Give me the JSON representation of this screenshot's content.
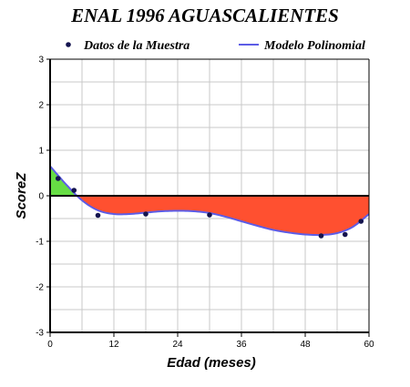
{
  "chart_data": {
    "type": "line",
    "title": "ENAL 1996 AGUASCALIENTES",
    "xlabel": "Edad (meses)",
    "ylabel": "ScoreZ",
    "xlim": [
      0,
      60
    ],
    "ylim": [
      -3,
      3
    ],
    "xticks": [
      "0",
      "12",
      "24",
      "36",
      "48",
      "60"
    ],
    "yticks": [
      "3",
      "2",
      "1",
      "0",
      "-1",
      "-2",
      "-3"
    ],
    "grid": true,
    "legend_position": "top",
    "series": [
      {
        "name": "Datos de la Muestra",
        "kind": "scatter",
        "color": "#14144f",
        "x": [
          1.5,
          4.5,
          9.0,
          18.0,
          30.0,
          51.0,
          55.5,
          58.5
        ],
        "y": [
          0.38,
          0.12,
          -0.43,
          -0.4,
          -0.42,
          -0.88,
          -0.85,
          -0.56
        ]
      },
      {
        "name": "Modelo Polinomial",
        "kind": "line",
        "color": "#5c5ce6",
        "x": [
          0,
          3,
          6,
          9,
          12,
          15,
          18,
          21,
          24,
          27,
          30,
          33,
          36,
          39,
          42,
          45,
          48,
          51,
          54,
          57,
          60
        ],
        "y": [
          0.65,
          0.25,
          -0.1,
          -0.32,
          -0.4,
          -0.4,
          -0.37,
          -0.34,
          -0.33,
          -0.34,
          -0.38,
          -0.46,
          -0.56,
          -0.66,
          -0.75,
          -0.81,
          -0.85,
          -0.86,
          -0.82,
          -0.68,
          -0.4
        ]
      }
    ],
    "fill_colors": {
      "positive": "#66dd44",
      "negative": "#ff5030"
    },
    "grid_color": "#c8c8c8"
  }
}
